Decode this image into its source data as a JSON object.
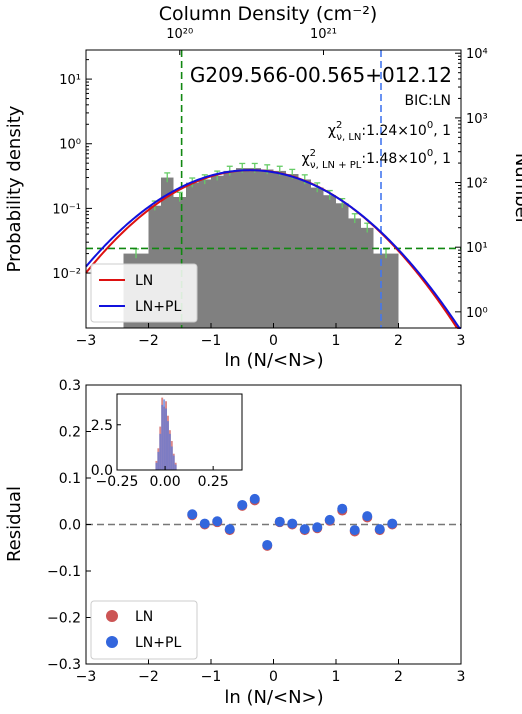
{
  "chart_data": [
    {
      "type": "bar",
      "panel": "top",
      "title": "G209.566-00.565+012.12",
      "xlabel": "ln (N/<N>)",
      "ylabel": "Probability density",
      "ylabel_right": "Number",
      "top_axis_label": "Column Density (cm⁻²)",
      "xlim": [
        -3,
        3
      ],
      "ylim_log": [
        -2.85,
        1.45
      ],
      "right_ylim_log": [
        -0.25,
        4.05
      ],
      "yscale": "log",
      "x_ticks": [
        "−3",
        "−2",
        "−1",
        "0",
        "1",
        "2",
        "3"
      ],
      "left_ticks": [
        {
          "exp": 1,
          "label": "10¹"
        },
        {
          "exp": 0,
          "label": "10⁰"
        },
        {
          "exp": -1,
          "label": "10⁻¹"
        },
        {
          "exp": -2,
          "label": "10⁻²"
        }
      ],
      "right_ticks": [
        {
          "exp": 4,
          "label": "10⁴"
        },
        {
          "exp": 3,
          "label": "10³"
        },
        {
          "exp": 2,
          "label": "10²"
        },
        {
          "exp": 1,
          "label": "10¹"
        },
        {
          "exp": 0,
          "label": "10⁰"
        }
      ],
      "top_ticks": [
        {
          "x": -1.5,
          "label": "10²⁰"
        },
        {
          "x": 0.8,
          "label": "10²¹"
        }
      ],
      "histogram": {
        "bin_edges": [
          -2.4,
          -2.0,
          -1.8,
          -1.6,
          -1.4,
          -1.2,
          -1.0,
          -0.8,
          -0.6,
          -0.4,
          -0.2,
          0.0,
          0.2,
          0.4,
          0.6,
          0.8,
          1.0,
          1.2,
          1.4,
          1.6,
          2.0
        ],
        "densities": [
          0.02,
          0.11,
          0.3,
          0.15,
          0.25,
          0.28,
          0.32,
          0.38,
          0.42,
          0.42,
          0.4,
          0.38,
          0.34,
          0.28,
          0.21,
          0.16,
          0.12,
          0.07,
          0.05,
          0.02
        ],
        "color": "#808080",
        "errorbar_color": "#66cc66"
      },
      "vlines": [
        {
          "x": -1.47,
          "color": "#118811"
        },
        {
          "x": 1.72,
          "color": "#4477ee"
        }
      ],
      "hline": {
        "y": 0.024,
        "color": "#118811"
      },
      "curves": [
        {
          "name": "LN",
          "color": "#dd1111",
          "mu": -0.35,
          "sigma": 0.98,
          "amp": 0.39
        },
        {
          "name": "LN+PL",
          "color": "#1111dd",
          "mu": -0.38,
          "sigma": 1.0,
          "amp": 0.39
        }
      ],
      "annotations": {
        "bic": "BIC:LN",
        "chi_ln": {
          "main": "χ",
          "sup": "2",
          "sub": "ν, LN",
          "value": ":1.24×10",
          "exp": "0",
          "tail": ", 1"
        },
        "chi_lnpl": {
          "main": "χ",
          "sup": "2",
          "sub": "ν, LN + PL",
          "value": ":1.48×10",
          "exp": "0",
          "tail": ", 1"
        }
      },
      "legend": {
        "placement": "lower left",
        "entries": [
          "LN",
          "LN+PL"
        ]
      }
    },
    {
      "type": "scatter",
      "panel": "bottom",
      "xlabel": "ln (N/<N>)",
      "ylabel": "Residual",
      "xlim": [
        -3,
        3
      ],
      "ylim": [
        -0.3,
        0.3
      ],
      "x_ticks": [
        "−3",
        "−2",
        "−1",
        "0",
        "1",
        "2",
        "3"
      ],
      "y_ticks": [
        {
          "v": 0.3,
          "label": "0.3"
        },
        {
          "v": 0.2,
          "label": "0.2"
        },
        {
          "v": 0.1,
          "label": "0.1"
        },
        {
          "v": 0.0,
          "label": "0.0"
        },
        {
          "v": -0.1,
          "label": "−0.1"
        },
        {
          "v": -0.2,
          "label": "−0.2"
        },
        {
          "v": -0.3,
          "label": "−0.3"
        }
      ],
      "zero_line": true,
      "series": [
        {
          "name": "LN",
          "color": "#cc5555",
          "x": [
            -1.3,
            -1.1,
            -0.9,
            -0.7,
            -0.5,
            -0.3,
            -0.1,
            0.1,
            0.3,
            0.5,
            0.7,
            0.9,
            1.1,
            1.3,
            1.5,
            1.7,
            1.9
          ],
          "y": [
            0.02,
            0.0,
            0.005,
            -0.012,
            0.04,
            0.052,
            -0.046,
            0.005,
            0.0,
            -0.012,
            -0.008,
            0.008,
            0.03,
            -0.015,
            0.015,
            -0.012,
            0.0
          ]
        },
        {
          "name": "LN+PL",
          "color": "#3366dd",
          "x": [
            -1.3,
            -1.1,
            -0.9,
            -0.7,
            -0.5,
            -0.3,
            -0.1,
            0.1,
            0.3,
            0.5,
            0.7,
            0.9,
            1.1,
            1.3,
            1.5,
            1.7,
            1.9
          ],
          "y": [
            0.022,
            0.002,
            0.007,
            -0.01,
            0.042,
            0.055,
            -0.044,
            0.006,
            0.002,
            -0.01,
            -0.006,
            0.01,
            0.034,
            -0.012,
            0.018,
            -0.01,
            0.002
          ]
        }
      ],
      "legend": {
        "placement": "lower left",
        "entries": [
          "LN",
          "LN+PL"
        ]
      },
      "inset": {
        "xlim": [
          -0.25,
          0.4
        ],
        "ylim": [
          0,
          4.2
        ],
        "x_ticks": [
          {
            "v": -0.25,
            "label": "−0.25"
          },
          {
            "v": 0.0,
            "label": "0.00"
          },
          {
            "v": 0.25,
            "label": "0.25"
          }
        ],
        "y_ticks": [
          {
            "v": 0.0,
            "label": "0.0"
          },
          {
            "v": 2.5,
            "label": "2.5"
          }
        ],
        "hist_ln": {
          "color": "#cc5555",
          "bin_edges": [
            -0.05,
            -0.04,
            -0.03,
            -0.02,
            -0.01,
            0.0,
            0.01,
            0.02,
            0.03,
            0.04,
            0.05,
            0.06
          ],
          "values": [
            0.5,
            1.2,
            2.4,
            4.0,
            3.5,
            3.8,
            3.0,
            2.2,
            1.6,
            0.9,
            0.4
          ]
        },
        "hist_lnpl": {
          "color": "#5577dd",
          "bin_edges": [
            -0.05,
            -0.04,
            -0.03,
            -0.02,
            -0.01,
            0.0,
            0.01,
            0.02,
            0.03,
            0.04,
            0.05,
            0.06
          ],
          "values": [
            0.4,
            1.0,
            2.0,
            3.6,
            3.9,
            3.4,
            2.7,
            2.0,
            1.3,
            0.8,
            0.3
          ]
        }
      }
    }
  ]
}
